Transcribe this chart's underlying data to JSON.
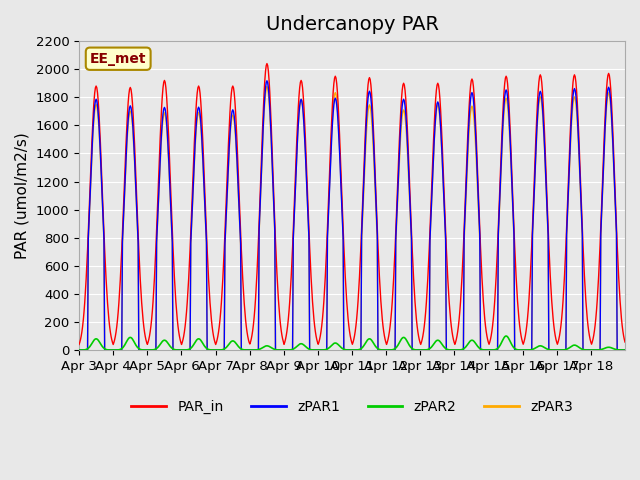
{
  "title": "Undercanopy PAR",
  "ylabel": "PAR (umol/m2/s)",
  "ylim": [
    0,
    2200
  ],
  "yticks": [
    0,
    200,
    400,
    600,
    800,
    1000,
    1200,
    1400,
    1600,
    1800,
    2000,
    2200
  ],
  "background_color": "#e8e8e8",
  "plot_bg_color": "#e8e8e8",
  "grid_color": "white",
  "annotation_text": "EE_met",
  "annotation_bg": "#ffffcc",
  "annotation_border": "#aa8800",
  "annotation_text_color": "#880000",
  "colors": {
    "PAR_in": "#ff0000",
    "zPAR1": "#0000ff",
    "zPAR2": "#00cc00",
    "zPAR3": "#ffaa00"
  },
  "x_tick_labels": [
    "Apr 3",
    "Apr 4",
    "Apr 5",
    "Apr 6",
    "Apr 7",
    "Apr 8",
    "Apr 9",
    "Apr 10",
    "Apr 11",
    "Apr 12",
    "Apr 13",
    "Apr 14",
    "Apr 15",
    "Apr 16",
    "Apr 17",
    "Apr 18"
  ],
  "n_days": 16,
  "points_per_day": 48,
  "title_fontsize": 14,
  "label_fontsize": 11,
  "tick_fontsize": 9.5,
  "legend_fontsize": 10
}
